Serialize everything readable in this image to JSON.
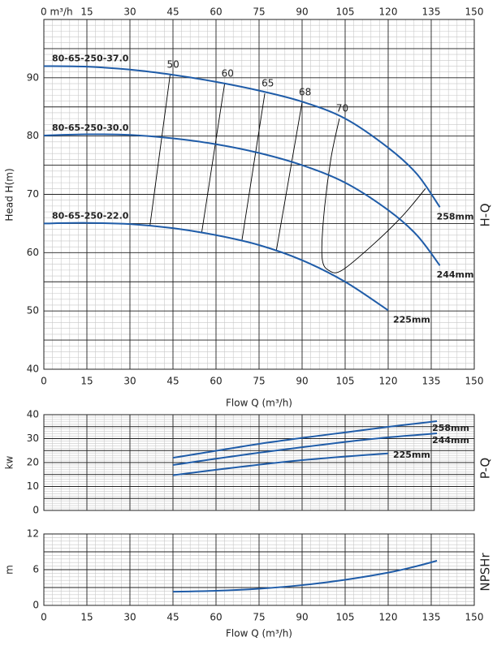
{
  "chart_data": [
    {
      "type": "line",
      "side_label": "H-Q",
      "ylabel": "Head H(m)",
      "xlabel": "Flow Q (m³/h)",
      "xlim": [
        0,
        150
      ],
      "ylim": [
        40,
        100
      ],
      "xticks": [
        0,
        15,
        30,
        45,
        60,
        75,
        90,
        105,
        120,
        135,
        150
      ],
      "x2ticks": [
        {
          "value": 0,
          "label": "0  m³/h"
        },
        15,
        30,
        45,
        60,
        75,
        90,
        105,
        120,
        135,
        150
      ],
      "yticks": [
        40,
        50,
        60,
        70,
        80,
        90
      ],
      "grid": true,
      "series": [
        {
          "name": "258mm",
          "model": "80-65-250-37.0",
          "color": "#1f5ca8",
          "x": [
            0,
            15,
            30,
            45,
            60,
            75,
            90,
            105,
            120,
            130,
            138
          ],
          "values": [
            92,
            91.9,
            91.4,
            90.5,
            89.3,
            87.8,
            85.9,
            83,
            78,
            73.5,
            67.8
          ]
        },
        {
          "name": "244mm",
          "model": "80-65-250-30.0",
          "color": "#1f5ca8",
          "x": [
            0,
            15,
            30,
            45,
            60,
            75,
            90,
            105,
            120,
            130,
            138
          ],
          "values": [
            80.1,
            80.3,
            80.2,
            79.6,
            78.6,
            77.1,
            75,
            72,
            67.3,
            63,
            57.8
          ]
        },
        {
          "name": "225mm",
          "model": "80-65-250-22.0",
          "color": "#1f5ca8",
          "x": [
            0,
            15,
            30,
            45,
            60,
            75,
            90,
            105,
            120
          ],
          "values": [
            65,
            65.1,
            64.9,
            64.2,
            63,
            61.3,
            58.7,
            55,
            50.1
          ]
        }
      ],
      "efficiency_lines": [
        {
          "name": "50",
          "color": "#000000",
          "x": [
            44,
            37
          ],
          "values": [
            90.5,
            64.7
          ]
        },
        {
          "name": "60",
          "color": "#000000",
          "x": [
            63,
            55
          ],
          "values": [
            89,
            63.4
          ]
        },
        {
          "name": "65",
          "color": "#000000",
          "x": [
            77,
            69
          ],
          "values": [
            87.3,
            62
          ]
        },
        {
          "name": "68",
          "color": "#000000",
          "x": [
            90,
            81
          ],
          "values": [
            85.8,
            60.3
          ]
        },
        {
          "name": "70",
          "color": "#000000",
          "x": [
            103,
            100,
            97.5,
            97,
            99.5,
            104,
            115,
            125,
            133
          ],
          "values": [
            83,
            76,
            66,
            59,
            56.9,
            57,
            61.5,
            66.3,
            71
          ]
        }
      ]
    },
    {
      "type": "line",
      "side_label": "P-Q",
      "ylabel": "kw",
      "xlim": [
        0,
        150
      ],
      "ylim": [
        0,
        40
      ],
      "xticks": [
        0,
        15,
        30,
        45,
        60,
        75,
        90,
        105,
        120,
        135,
        150
      ],
      "show_xtick_labels": false,
      "yticks": [
        0,
        10,
        20,
        30,
        40
      ],
      "grid": true,
      "series": [
        {
          "name": "258mm",
          "color": "#1f5ca8",
          "x": [
            45,
            60,
            75,
            90,
            105,
            120,
            137
          ],
          "values": [
            22,
            24.9,
            27.8,
            30.3,
            32.6,
            34.9,
            37.3
          ]
        },
        {
          "name": "244mm",
          "color": "#1f5ca8",
          "x": [
            45,
            60,
            75,
            90,
            105,
            120,
            137
          ],
          "values": [
            19,
            21.6,
            24.1,
            26.4,
            28.6,
            30.5,
            32.2
          ]
        },
        {
          "name": "225mm",
          "color": "#1f5ca8",
          "x": [
            45,
            60,
            75,
            90,
            105,
            120
          ],
          "values": [
            14.7,
            17,
            19.1,
            21,
            22.5,
            23.8
          ]
        }
      ]
    },
    {
      "type": "line",
      "side_label": "NPSHr",
      "ylabel": "m",
      "xlabel": "Flow Q (m³/h)",
      "xlim": [
        0,
        150
      ],
      "ylim": [
        0,
        12
      ],
      "xticks": [
        0,
        15,
        30,
        45,
        60,
        75,
        90,
        105,
        120,
        135,
        150
      ],
      "yticks": [
        0,
        6,
        12
      ],
      "grid": true,
      "series": [
        {
          "color": "#1f5ca8",
          "x": [
            45,
            60,
            75,
            90,
            105,
            120,
            130,
            137
          ],
          "values": [
            2.3,
            2.45,
            2.8,
            3.4,
            4.3,
            5.5,
            6.6,
            7.5
          ]
        }
      ]
    }
  ]
}
